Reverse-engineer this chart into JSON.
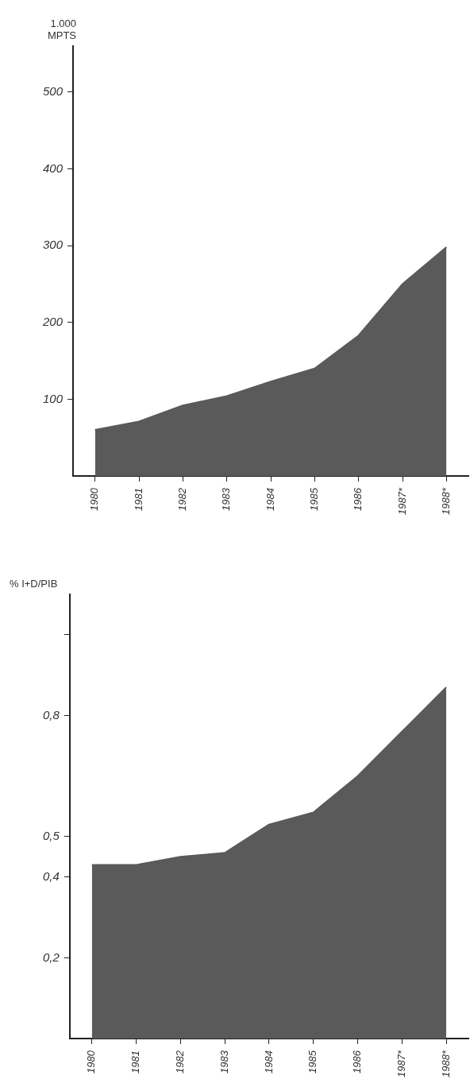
{
  "chart_data": [
    {
      "type": "area",
      "ylabel": "1.000\nMPTS",
      "categories": [
        "1980",
        "1981",
        "1982",
        "1983",
        "1984",
        "1985",
        "1986",
        "1987*",
        "1988*"
      ],
      "series": [
        {
          "color": "#5a5a5a",
          "values": [
            60,
            71,
            92,
            104,
            123,
            140,
            183,
            250,
            298
          ]
        }
      ],
      "ylim": [
        0,
        560
      ],
      "yticks": [
        100,
        200,
        300,
        400,
        500
      ],
      "grid": false,
      "legend": false
    },
    {
      "type": "area",
      "ylabel": "% I+D/PIB",
      "categories": [
        "1980",
        "1981",
        "1982",
        "1983",
        "1984",
        "1985",
        "1986",
        "1987*",
        "1988*"
      ],
      "series": [
        {
          "color": "#5a5a5a",
          "values": [
            0.43,
            0.43,
            0.45,
            0.46,
            0.53,
            0.56,
            0.65,
            0.76,
            0.87
          ]
        }
      ],
      "ylim": [
        0,
        1.1
      ],
      "yticks": [
        {
          "value": 0.2,
          "label": "0,2"
        },
        {
          "value": 0.4,
          "label": "0,4"
        },
        {
          "value": 0.5,
          "label": "0,5"
        },
        {
          "value": 0.8,
          "label": "0,8"
        },
        {
          "value": 1.0,
          "label": null
        }
      ],
      "grid": false,
      "legend": false
    }
  ]
}
